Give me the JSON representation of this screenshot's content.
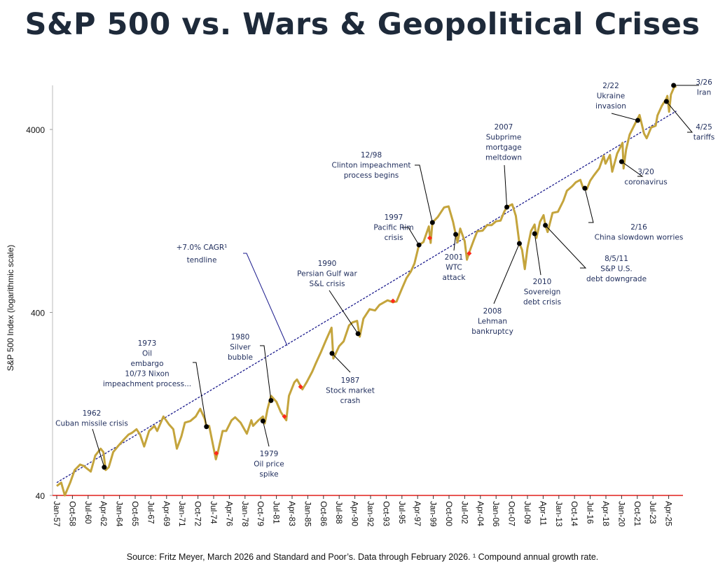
{
  "title": "S&P 500 vs. Wars & Geopolitical Crises",
  "source": "Source: Fritz Meyer, March 2026 and  Standard and Poor’s. Data through February 2026. ¹ Compound annual growth rate.",
  "chart_data": {
    "type": "line",
    "title": "S&P 500 vs. Wars & Geopolitical Crises",
    "ylabel": "S&P 500 Index (logarithmic scale)",
    "xlabel": "",
    "yscale": "log",
    "ylim": [
      40,
      7000
    ],
    "yticks": [
      "40",
      "400",
      "4000"
    ],
    "ytick_values": [
      40,
      400,
      4000
    ],
    "xlim": [
      "Jan-57",
      "Feb-26"
    ],
    "xticks": [
      "Jan-57",
      "Oct-58",
      "Jul-60",
      "Apr-62",
      "Jan-64",
      "Oct-65",
      "Jul-67",
      "Apr-69",
      "Jan-71",
      "Oct-72",
      "Jul-74",
      "Apr-76",
      "Jan-78",
      "Oct-79",
      "Jul-81",
      "Apr-83",
      "Jan-85",
      "Oct-86",
      "Jul-88",
      "Apr-90",
      "Jan-92",
      "Oct-93",
      "Jul-95",
      "Apr-97",
      "Jan-99",
      "Oct-00",
      "Jul-02",
      "Apr-04",
      "Jan-06",
      "Oct-07",
      "Jul-09",
      "Apr-11",
      "Jan-13",
      "Oct-14",
      "Jul-16",
      "Apr-18",
      "Jan-20",
      "Oct-21",
      "Jul-23",
      "Apr-25"
    ],
    "grid": false,
    "colors": {
      "series": "#c4a43c",
      "trend": "#1a1a8c",
      "event_marker": "#000000",
      "trough_marker": "#ff2a1a",
      "x_axis": "#e0201c",
      "annotation_text": "#1f2d5c"
    },
    "series": [
      {
        "x": [
          1957.0,
          1957.5,
          1957.9,
          1958.5,
          1959.0,
          1959.6,
          1960.0,
          1960.8,
          1961.3,
          1961.9,
          1962.2,
          1962.45,
          1962.8,
          1963.3,
          1963.9,
          1964.5,
          1965.0,
          1965.4,
          1965.9,
          1966.3,
          1966.75,
          1967.3,
          1967.9,
          1968.2,
          1968.9,
          1969.5,
          1970.0,
          1970.4,
          1970.9,
          1971.3,
          1971.9,
          1972.5,
          1973.0,
          1973.5,
          1973.7,
          1974.0,
          1974.75,
          1975.0,
          1975.5,
          1975.9,
          1976.5,
          1976.9,
          1977.5,
          1978.2,
          1978.7,
          1978.9,
          1979.5,
          1980.0,
          1980.2,
          1980.5,
          1980.9,
          1981.5,
          1982.0,
          1982.6,
          1982.9,
          1983.5,
          1983.8,
          1984.4,
          1984.9,
          1985.5,
          1985.9,
          1986.5,
          1987.0,
          1987.65,
          1987.85,
          1988.5,
          1989.0,
          1989.6,
          1990.0,
          1990.5,
          1990.8,
          1991.2,
          1991.9,
          1992.5,
          1993.0,
          1993.9,
          1994.5,
          1994.9,
          1995.5,
          1996.0,
          1996.5,
          1996.9,
          1997.4,
          1997.9,
          1998.5,
          1998.7,
          1998.9,
          1999.5,
          2000.2,
          2000.7,
          2001.2,
          2001.5,
          2001.7,
          2002.0,
          2002.5,
          2002.75,
          2003.0,
          2003.5,
          2003.9,
          2004.5,
          2005.0,
          2005.5,
          2006.0,
          2006.5,
          2006.9,
          2007.2,
          2007.8,
          2008.2,
          2008.6,
          2008.9,
          2009.2,
          2009.5,
          2009.9,
          2010.3,
          2010.5,
          2010.9,
          2011.3,
          2011.5,
          2011.75,
          2012.3,
          2012.9,
          2013.5,
          2013.9,
          2014.5,
          2014.9,
          2015.4,
          2015.7,
          2016.1,
          2016.5,
          2016.9,
          2017.5,
          2018.0,
          2018.2,
          2018.7,
          2018.95,
          2019.5,
          2019.9,
          2020.1,
          2020.22,
          2020.5,
          2020.9,
          2021.5,
          2022.0,
          2022.5,
          2022.8,
          2023.3,
          2023.8,
          2024.0,
          2024.5,
          2025.0,
          2025.1,
          2025.3,
          2025.5,
          2025.85,
          2026.1
        ],
        "y": [
          45,
          47,
          40,
          47,
          55,
          59,
          58,
          54,
          66,
          72,
          69,
          55,
          57,
          69,
          75,
          81,
          86,
          88,
          92,
          86,
          74,
          90,
          96,
          90,
          108,
          98,
          92,
          72,
          84,
          100,
          102,
          108,
          119,
          105,
          95,
          96,
          63,
          70,
          90,
          90,
          103,
          107,
          100,
          87,
          103,
          96,
          103,
          108,
          99,
          118,
          140,
          130,
          114,
          103,
          140,
          166,
          172,
          152,
          167,
          190,
          211,
          245,
          280,
          330,
          224,
          262,
          278,
          340,
          353,
          360,
          295,
          370,
          417,
          410,
          440,
          466,
          455,
          459,
          540,
          615,
          670,
          741,
          935,
          970,
          1180,
          960,
          1240,
          1330,
          1500,
          1520,
          1250,
          1068,
          965,
          1150,
          980,
          777,
          850,
          990,
          1110,
          1120,
          1200,
          1200,
          1260,
          1270,
          1418,
          1505,
          1560,
          1350,
          952,
          880,
          690,
          900,
          1115,
          1210,
          1020,
          1250,
          1360,
          1197,
          1100,
          1400,
          1420,
          1630,
          1850,
          1960,
          2059,
          2120,
          1920,
          1880,
          2100,
          2240,
          2450,
          2870,
          2600,
          2900,
          2350,
          2950,
          3230,
          3380,
          2450,
          3100,
          3750,
          4300,
          4800,
          3800,
          3580,
          4100,
          4190,
          4770,
          5400,
          5900,
          6100,
          5000,
          6200,
          6800,
          6900
        ]
      }
    ],
    "trendline": {
      "label": "+7.0% CAGR¹\ntendline",
      "lines": [
        "+7.0% CAGR¹",
        "tendline"
      ],
      "cagr": 0.07,
      "start": [
        1957.0,
        47
      ],
      "end_year": 2026.1
    },
    "trough_markers": [
      {
        "x": 1974.8,
        "y": 68
      },
      {
        "x": 1982.4,
        "y": 108
      },
      {
        "x": 1984.2,
        "y": 157
      },
      {
        "x": 1994.5,
        "y": 462
      },
      {
        "x": 1998.6,
        "y": 1021
      },
      {
        "x": 2003.0,
        "y": 841
      }
    ],
    "events": [
      {
        "date": 1962.3,
        "value": 57,
        "lines": [
          "1962",
          "Cuban missile crisis"
        ]
      },
      {
        "date": 1973.7,
        "value": 95,
        "lines": [
          "1973",
          "Oil",
          "embargo",
          "10/73 Nixon",
          "impeachment process..."
        ]
      },
      {
        "date": 1980.9,
        "value": 132,
        "lines": [
          "1980",
          "Silver",
          "bubble"
        ]
      },
      {
        "date": 1980.0,
        "value": 102,
        "lines": [
          "1979",
          "Oil price",
          "spike"
        ]
      },
      {
        "date": 1987.7,
        "value": 239,
        "lines": [
          "1987",
          "Stock market",
          "crash"
        ]
      },
      {
        "date": 1990.6,
        "value": 306,
        "lines": [
          "1990",
          "Persian Gulf war",
          "S&L crisis"
        ]
      },
      {
        "date": 1997.4,
        "value": 935,
        "lines": [
          "1997",
          "Pacific Rim",
          "crisis"
        ]
      },
      {
        "date": 1998.9,
        "value": 1240,
        "lines": [
          "12/98",
          "Clinton impeachment",
          "process begins"
        ]
      },
      {
        "date": 2001.5,
        "value": 1068,
        "lines": [
          "2001",
          "WTC",
          "attack"
        ]
      },
      {
        "date": 2007.2,
        "value": 1505,
        "lines": [
          "2007",
          "Subprime",
          "mortgage",
          "meltdown"
        ]
      },
      {
        "date": 2008.6,
        "value": 952,
        "lines": [
          "2008",
          "Lehman",
          "bankruptcy"
        ]
      },
      {
        "date": 2010.3,
        "value": 1077,
        "lines": [
          "2010",
          "Sovereign",
          "debt crisis"
        ]
      },
      {
        "date": 2011.5,
        "value": 1197,
        "lines": [
          "8/5/11",
          "S&P U.S.",
          "debt downgrade"
        ]
      },
      {
        "date": 2015.9,
        "value": 1909,
        "lines": [
          "2/16",
          "China slowdown worries"
        ]
      },
      {
        "date": 2020.0,
        "value": 2668,
        "lines": [
          "3/20",
          "coronavirus"
        ]
      },
      {
        "date": 2021.8,
        "value": 4486,
        "lines": [
          "2/22",
          "Ukraine",
          "invasion"
        ]
      },
      {
        "date": 2025.0,
        "value": 5688,
        "lines": [
          "4/25",
          "tariffs"
        ]
      },
      {
        "date": 2025.8,
        "value": 6965,
        "lines": [
          "3/26",
          "Iran"
        ]
      }
    ]
  }
}
